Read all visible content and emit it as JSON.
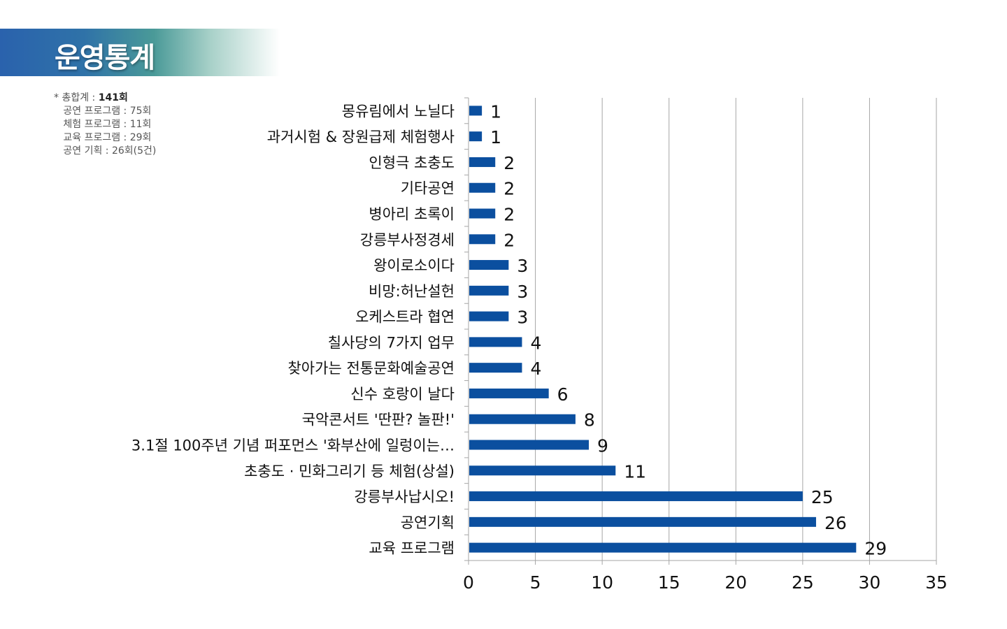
{
  "header": {
    "title": "운영통계"
  },
  "summary": {
    "total_label": "* 총합계 : ",
    "total_value": "141회",
    "lines": [
      "공연 프로그램 : 75회",
      "체험 프로그램 : 11회",
      "교육 프로그램 : 29회",
      "공연 기획 : 26회(5건)"
    ]
  },
  "colors": {
    "bar": "#0b4f9f",
    "grid": "#a6a6a6"
  },
  "chart_data": {
    "type": "bar",
    "orientation": "horizontal",
    "categories": [
      "몽유림에서 노닐다",
      "과거시험 & 장원급제 체험행사",
      "인형극 초충도",
      "기타공연",
      "병아리 초록이",
      "강릉부사정경세",
      "왕이로소이다",
      "비망:허난설헌",
      "오케스트라 협연",
      "칠사당의 7가지 업무",
      "찾아가는 전통문화예술공연",
      "신수 호랑이 날다",
      "국악콘서트 '딴판? 놀판!'",
      "3.1절 100주년 기념 퍼포먼스 '화부산에 일렁이는…",
      "초충도 · 민화그리기 등 체험(상설)",
      "강릉부사납시오!",
      "공연기획",
      "교육 프로그램"
    ],
    "values": [
      1,
      1,
      2,
      2,
      2,
      2,
      3,
      3,
      3,
      4,
      4,
      6,
      8,
      9,
      11,
      25,
      26,
      29
    ],
    "xlim": [
      0,
      35
    ],
    "xticks": [
      0,
      5,
      10,
      15,
      20,
      25,
      30,
      35
    ],
    "grid": true,
    "legend": "none",
    "data_labels": true
  }
}
